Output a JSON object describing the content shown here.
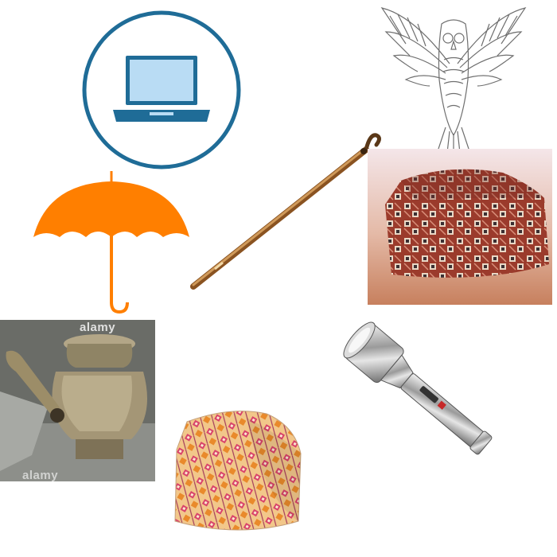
{
  "scene": {
    "description_items": [
      {
        "icon": "laptop-circle-icon"
      },
      {
        "icon": "owl-drawing"
      },
      {
        "icon": "umbrella-icon"
      },
      {
        "icon": "walking-cane"
      },
      {
        "icon": "patterned-cap-photo"
      },
      {
        "icon": "brass-kettle-photo"
      },
      {
        "icon": "flashlight-photo"
      },
      {
        "icon": "patterned-cap-small-photo"
      }
    ],
    "watermarks": {
      "top": "alamy",
      "bottom": "alamy"
    },
    "colors": {
      "laptop_blue": "#1f6c97",
      "laptop_screen": "#b9dcf4",
      "umbrella_orange": "#ff7f00",
      "cane_brown": "#b8742f",
      "cap_red": "#9b3b2c",
      "sky_top": "#f4e6e9",
      "sky_bottom": "#c7805e"
    }
  }
}
